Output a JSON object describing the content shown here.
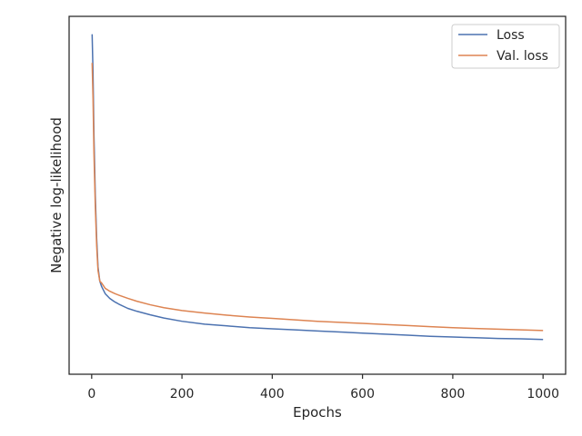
{
  "chart_data": {
    "type": "line",
    "title": "",
    "xlabel": "Epochs",
    "ylabel": "Negative log-likelihood",
    "xlim": [
      -50,
      1050
    ],
    "ylim": [
      0.0,
      1.0
    ],
    "y_ticks_shown": false,
    "grid": false,
    "legend_placement": "top-right",
    "x_ticks": [
      0,
      200,
      400,
      600,
      800,
      1000
    ],
    "x_tick_labels": [
      "0",
      "200",
      "400",
      "600",
      "800",
      "1000"
    ],
    "series": [
      {
        "name": "Loss",
        "color": "#4c72b0",
        "points": [
          [
            1,
            0.95
          ],
          [
            3,
            0.84
          ],
          [
            5,
            0.67
          ],
          [
            8,
            0.5
          ],
          [
            11,
            0.38
          ],
          [
            14,
            0.3
          ],
          [
            18,
            0.26
          ],
          [
            22,
            0.245
          ],
          [
            30,
            0.225
          ],
          [
            40,
            0.212
          ],
          [
            50,
            0.203
          ],
          [
            60,
            0.196
          ],
          [
            80,
            0.184
          ],
          [
            100,
            0.176
          ],
          [
            130,
            0.166
          ],
          [
            160,
            0.157
          ],
          [
            200,
            0.148
          ],
          [
            250,
            0.14
          ],
          [
            300,
            0.135
          ],
          [
            350,
            0.13
          ],
          [
            400,
            0.127
          ],
          [
            450,
            0.124
          ],
          [
            500,
            0.121
          ],
          [
            550,
            0.118
          ],
          [
            600,
            0.115
          ],
          [
            650,
            0.112
          ],
          [
            700,
            0.109
          ],
          [
            750,
            0.106
          ],
          [
            800,
            0.104
          ],
          [
            850,
            0.102
          ],
          [
            900,
            0.1
          ],
          [
            950,
            0.099
          ],
          [
            1000,
            0.097
          ]
        ]
      },
      {
        "name": "Val. loss",
        "color": "#dd8452",
        "points": [
          [
            1,
            0.87
          ],
          [
            3,
            0.77
          ],
          [
            5,
            0.62
          ],
          [
            8,
            0.47
          ],
          [
            11,
            0.36
          ],
          [
            14,
            0.29
          ],
          [
            18,
            0.26
          ],
          [
            22,
            0.255
          ],
          [
            30,
            0.24
          ],
          [
            40,
            0.232
          ],
          [
            50,
            0.226
          ],
          [
            60,
            0.221
          ],
          [
            80,
            0.212
          ],
          [
            100,
            0.204
          ],
          [
            130,
            0.194
          ],
          [
            160,
            0.186
          ],
          [
            200,
            0.178
          ],
          [
            250,
            0.171
          ],
          [
            300,
            0.165
          ],
          [
            350,
            0.16
          ],
          [
            400,
            0.156
          ],
          [
            450,
            0.152
          ],
          [
            500,
            0.148
          ],
          [
            550,
            0.145
          ],
          [
            600,
            0.142
          ],
          [
            650,
            0.139
          ],
          [
            700,
            0.136
          ],
          [
            750,
            0.133
          ],
          [
            800,
            0.13
          ],
          [
            850,
            0.128
          ],
          [
            900,
            0.126
          ],
          [
            950,
            0.124
          ],
          [
            1000,
            0.122
          ]
        ]
      }
    ]
  }
}
